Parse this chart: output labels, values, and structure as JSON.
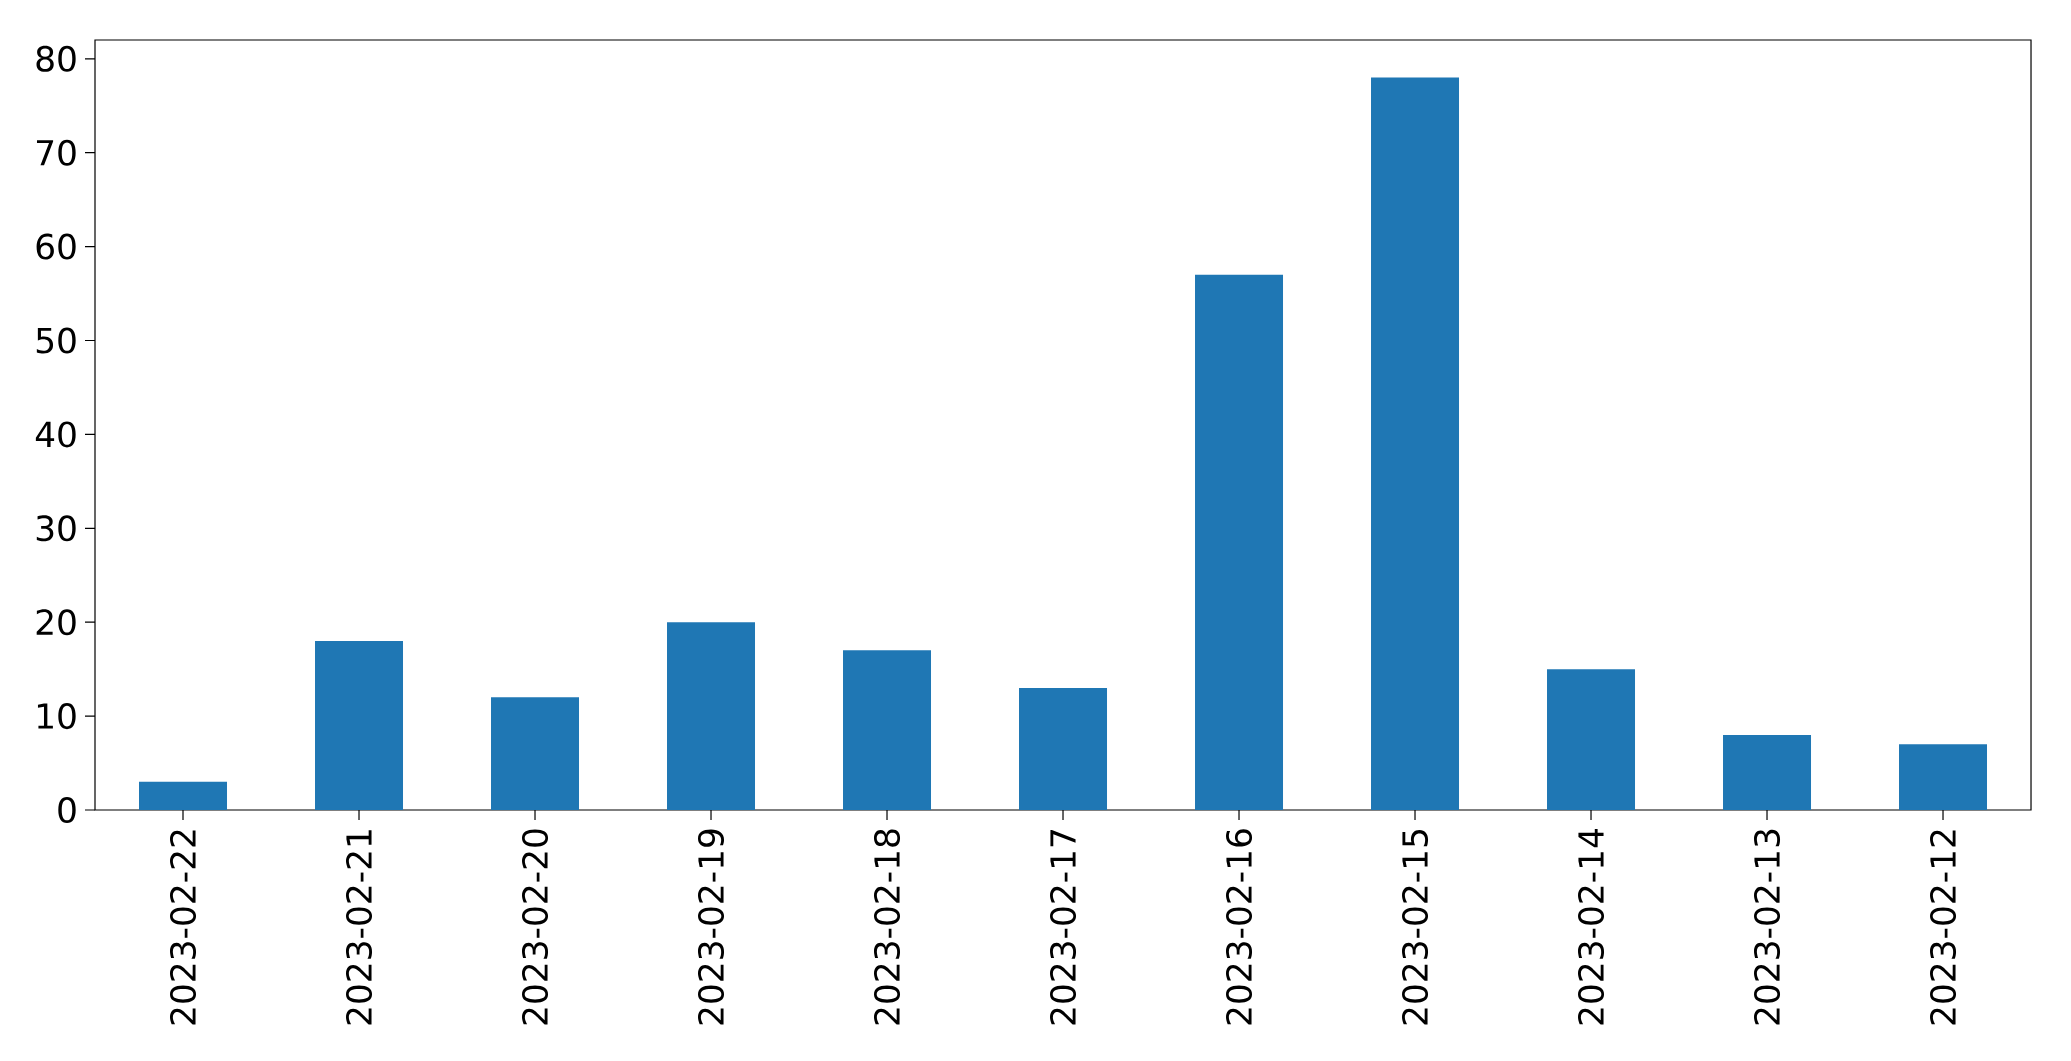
{
  "chart_data": {
    "type": "bar",
    "categories": [
      "2023-02-22",
      "2023-02-21",
      "2023-02-20",
      "2023-02-19",
      "2023-02-18",
      "2023-02-17",
      "2023-02-16",
      "2023-02-15",
      "2023-02-14",
      "2023-02-13",
      "2023-02-12"
    ],
    "values": [
      3,
      18,
      12,
      20,
      17,
      13,
      57,
      78,
      15,
      8,
      7
    ],
    "color": "#1f77b4",
    "ylim": [
      0,
      82
    ],
    "yticks": [
      0,
      10,
      20,
      30,
      40,
      50,
      60,
      70,
      80
    ]
  }
}
